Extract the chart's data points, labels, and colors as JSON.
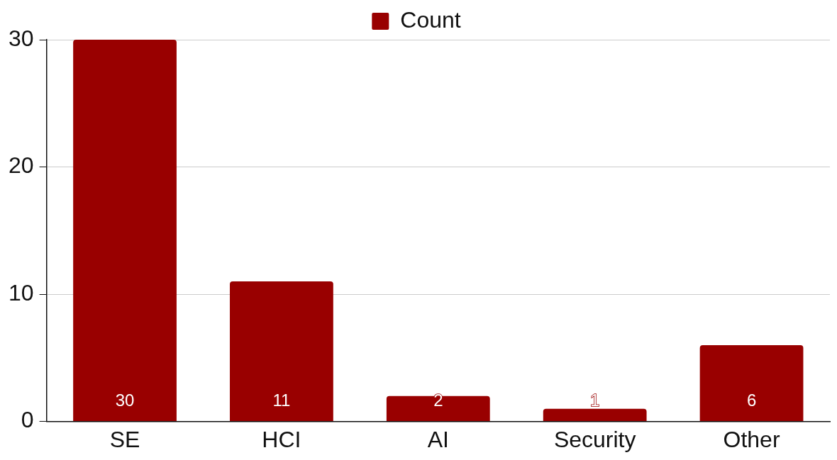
{
  "chart_data": {
    "type": "bar",
    "categories": [
      "SE",
      "HCI",
      "AI",
      "Security",
      "Other"
    ],
    "series": [
      {
        "name": "Count",
        "color": "#990000",
        "values": [
          30,
          11,
          2,
          1,
          6
        ]
      }
    ],
    "ylim": [
      0,
      30
    ],
    "yticks": [
      0,
      10,
      20,
      30
    ],
    "grid": "y",
    "legend": "top",
    "data_labels": true
  }
}
